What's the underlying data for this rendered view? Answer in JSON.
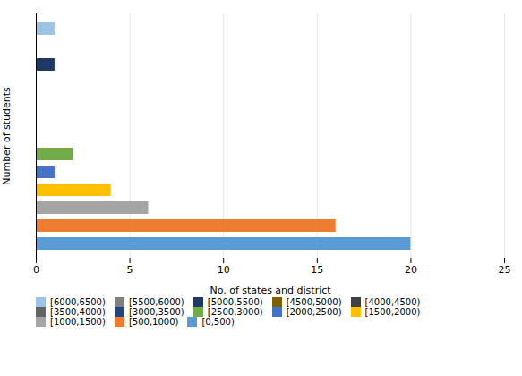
{
  "chart_data": {
    "type": "bar",
    "orientation": "horizontal",
    "categories": [
      "[0,500)",
      "[500,1000)",
      "[1000,1500)",
      "[1500,2000)",
      "[2000,2500)",
      "[2500,3000)",
      "[3000,3500)",
      "[3500,4000)",
      "[4000,4500)",
      "[4500,5000)",
      "[5000,5500)",
      "[5500,6000)",
      "[6000,6500)"
    ],
    "values": [
      20,
      16,
      6,
      4,
      1,
      2,
      0,
      0,
      0,
      0,
      1,
      0,
      1
    ],
    "colors": [
      "#5B9BD5",
      "#ED7D31",
      "#A5A5A5",
      "#FFC000",
      "#4472C4",
      "#70AD47",
      "#264478",
      "#636363",
      "#404040",
      "#7F6000",
      "#1F3864",
      "#808080",
      "#9DC3E6"
    ],
    "xlabel": "No. of states and district",
    "ylabel": "Number of students",
    "xlim": [
      0,
      25
    ],
    "xticks": [
      0,
      5,
      10,
      15,
      20,
      25
    ],
    "grid": true,
    "legend": "bottom",
    "tick_labels": "x"
  }
}
